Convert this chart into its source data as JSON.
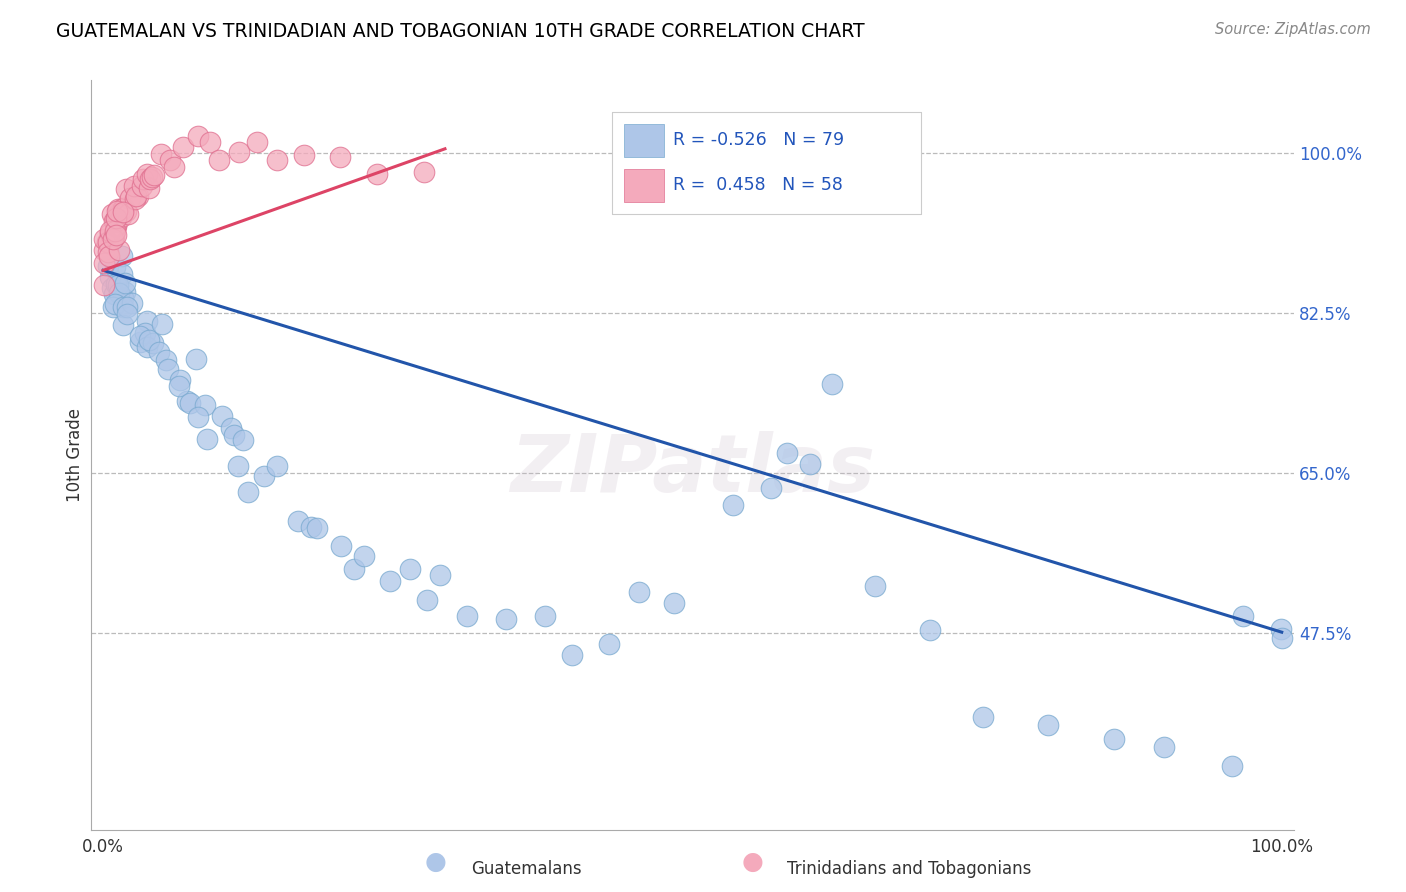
{
  "title": "GUATEMALAN VS TRINIDADIAN AND TOBAGONIAN 10TH GRADE CORRELATION CHART",
  "source_text": "Source: ZipAtlas.com",
  "ylabel": "10th Grade",
  "blue_R": -0.526,
  "blue_N": 79,
  "pink_R": 0.458,
  "pink_N": 58,
  "blue_color": "#aec6e8",
  "blue_edge_color": "#7aaad0",
  "blue_line_color": "#2255aa",
  "pink_color": "#f4aabc",
  "pink_edge_color": "#e07090",
  "pink_line_color": "#dd4466",
  "legend_label_blue": "Guatemalans",
  "legend_label_pink": "Trinidadians and Tobagonians",
  "watermark": "ZIPatlas",
  "ytick_vals": [
    0.475,
    0.65,
    0.825,
    1.0
  ],
  "ytick_labels": [
    "47.5%",
    "65.0%",
    "82.5%",
    "100.0%"
  ],
  "ymin": 0.26,
  "ymax": 1.08,
  "xmin": -0.01,
  "xmax": 1.01,
  "blue_line_x": [
    0.0,
    1.0
  ],
  "blue_line_y": [
    0.872,
    0.476
  ],
  "pink_line_x": [
    0.0,
    0.29
  ],
  "pink_line_y": [
    0.872,
    1.005
  ],
  "blue_pts_x": [
    0.003,
    0.005,
    0.007,
    0.008,
    0.009,
    0.01,
    0.011,
    0.012,
    0.013,
    0.014,
    0.015,
    0.016,
    0.017,
    0.018,
    0.019,
    0.02,
    0.022,
    0.023,
    0.025,
    0.027,
    0.03,
    0.032,
    0.035,
    0.038,
    0.04,
    0.042,
    0.045,
    0.048,
    0.05,
    0.055,
    0.058,
    0.062,
    0.065,
    0.07,
    0.075,
    0.08,
    0.085,
    0.09,
    0.095,
    0.1,
    0.105,
    0.11,
    0.115,
    0.12,
    0.13,
    0.14,
    0.15,
    0.16,
    0.175,
    0.19,
    0.2,
    0.215,
    0.225,
    0.24,
    0.255,
    0.27,
    0.29,
    0.31,
    0.34,
    0.37,
    0.4,
    0.43,
    0.46,
    0.49,
    0.53,
    0.56,
    0.6,
    0.65,
    0.7,
    0.75,
    0.8,
    0.85,
    0.9,
    0.95,
    0.98,
    0.995,
    1.0,
    0.62,
    0.58
  ],
  "blue_pts_y": [
    0.895,
    0.88,
    0.87,
    0.865,
    0.86,
    0.858,
    0.856,
    0.854,
    0.852,
    0.85,
    0.848,
    0.846,
    0.844,
    0.842,
    0.84,
    0.838,
    0.834,
    0.832,
    0.828,
    0.824,
    0.82,
    0.815,
    0.81,
    0.805,
    0.8,
    0.795,
    0.79,
    0.785,
    0.78,
    0.77,
    0.765,
    0.758,
    0.752,
    0.745,
    0.738,
    0.73,
    0.72,
    0.712,
    0.705,
    0.695,
    0.688,
    0.68,
    0.672,
    0.665,
    0.65,
    0.638,
    0.625,
    0.612,
    0.6,
    0.588,
    0.578,
    0.568,
    0.558,
    0.548,
    0.538,
    0.525,
    0.515,
    0.505,
    0.495,
    0.482,
    0.47,
    0.46,
    0.5,
    0.532,
    0.612,
    0.63,
    0.648,
    0.545,
    0.498,
    0.375,
    0.37,
    0.355,
    0.345,
    0.34,
    0.49,
    0.475,
    0.48,
    0.72,
    0.665
  ],
  "pink_pts_x": [
    0.001,
    0.002,
    0.003,
    0.004,
    0.005,
    0.006,
    0.007,
    0.008,
    0.009,
    0.01,
    0.011,
    0.012,
    0.013,
    0.014,
    0.015,
    0.016,
    0.017,
    0.018,
    0.019,
    0.02,
    0.022,
    0.024,
    0.026,
    0.028,
    0.03,
    0.032,
    0.034,
    0.036,
    0.038,
    0.04,
    0.043,
    0.046,
    0.05,
    0.055,
    0.06,
    0.07,
    0.08,
    0.09,
    0.1,
    0.115,
    0.13,
    0.15,
    0.17,
    0.2,
    0.23,
    0.27,
    0.001,
    0.002,
    0.003,
    0.004,
    0.005,
    0.006,
    0.007,
    0.008,
    0.009,
    0.01,
    0.012,
    0.015
  ],
  "pink_pts_y": [
    0.9,
    0.905,
    0.91,
    0.912,
    0.915,
    0.918,
    0.92,
    0.922,
    0.924,
    0.926,
    0.928,
    0.93,
    0.932,
    0.934,
    0.936,
    0.938,
    0.94,
    0.942,
    0.944,
    0.946,
    0.95,
    0.952,
    0.955,
    0.958,
    0.96,
    0.965,
    0.968,
    0.97,
    0.972,
    0.975,
    0.978,
    0.982,
    0.985,
    0.99,
    0.995,
    1.0,
    1.002,
    1.004,
    1.005,
    1.005,
    1.002,
    0.998,
    0.995,
    0.99,
    0.985,
    0.98,
    0.882,
    0.888,
    0.894,
    0.898,
    0.902,
    0.906,
    0.91,
    0.914,
    0.918,
    0.922,
    0.928,
    0.936
  ]
}
